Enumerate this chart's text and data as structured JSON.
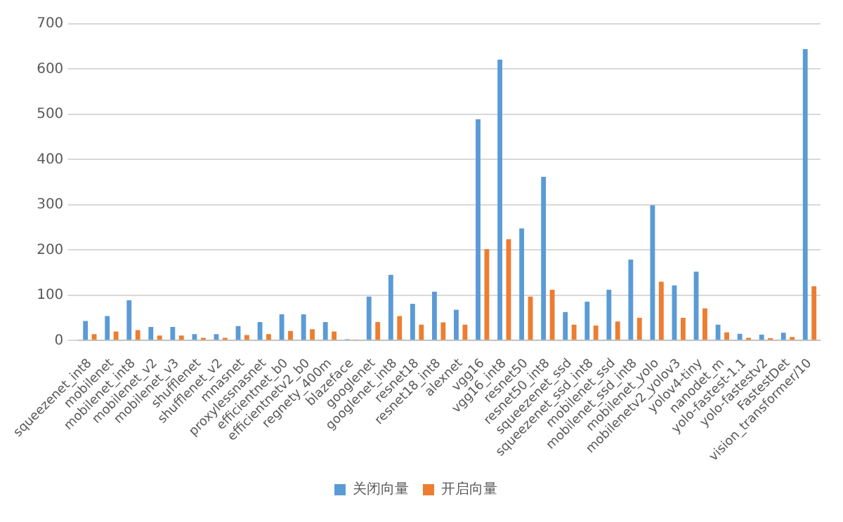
{
  "chart_data": {
    "type": "bar",
    "categories": [
      "squeezenet_int8",
      "mobilenet",
      "mobilenet_int8",
      "mobilenet_v2",
      "mobilenet_v3",
      "shufflenet",
      "shufflenet_v2",
      "mnasnet",
      "proxylessnasnet",
      "efficientnet_b0",
      "efficientnetv2_b0",
      "regnety_400m",
      "blazeface",
      "googlenet",
      "googlenet_int8",
      "resnet18",
      "resnet18_int8",
      "alexnet",
      "vgg16",
      "vgg16_int8",
      "resnet50",
      "resnet50_int8",
      "squeezenet_ssd",
      "squeezenet_ssd_int8",
      "mobilenet_ssd",
      "mobilenet_ssd_int8",
      "mobilenet_yolo",
      "mobilenetv2_yolov3",
      "yolov4-tiny",
      "nanodet_m",
      "yolo-fastest-1.1",
      "yolo-fastestv2",
      "FastestDet",
      "vision_transformer/10"
    ],
    "series": [
      {
        "name": "关闭向量",
        "color": "#5b9bd5",
        "values": [
          43,
          54,
          89,
          30,
          30,
          14,
          14,
          32,
          41,
          58,
          58,
          41,
          3,
          97,
          145,
          81,
          108,
          68,
          489,
          621,
          248,
          362,
          63,
          86,
          112,
          179,
          299,
          122,
          152,
          35,
          15,
          13,
          17,
          644
        ]
      },
      {
        "name": "开启向量",
        "color": "#ed7d31",
        "values": [
          14,
          20,
          23,
          11,
          11,
          6,
          6,
          12,
          14,
          21,
          25,
          20,
          1,
          41,
          54,
          35,
          40,
          35,
          202,
          224,
          97,
          112,
          35,
          33,
          42,
          50,
          130,
          50,
          71,
          18,
          6,
          5,
          8,
          120
        ]
      }
    ],
    "ylim": [
      0,
      700
    ],
    "yticks": [
      0,
      100,
      200,
      300,
      400,
      500,
      600,
      700
    ],
    "grid": "y",
    "legend": "bottom"
  }
}
